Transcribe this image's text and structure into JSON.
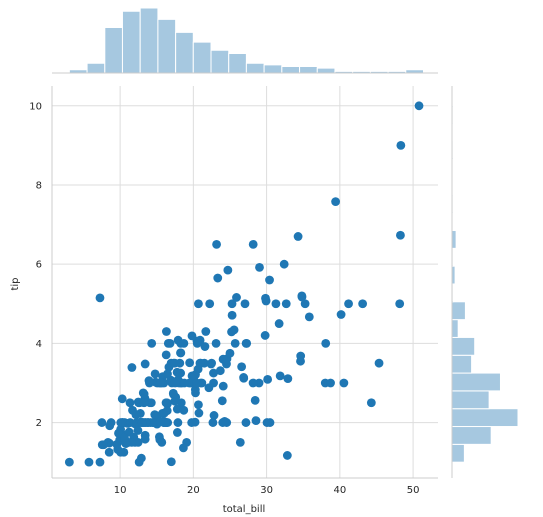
{
  "chart_data": {
    "type": "scatter",
    "xlabel": "total_bill",
    "ylabel": "tip",
    "xlim": [
      0.7,
      53.4
    ],
    "ylim": [
      0.6,
      10.5
    ],
    "xticks": [
      10,
      20,
      30,
      40,
      50
    ],
    "yticks": [
      2,
      4,
      6,
      8,
      10
    ],
    "grid": true,
    "points": [
      [
        16.99,
        1.01
      ],
      [
        10.34,
        1.66
      ],
      [
        21.01,
        3.5
      ],
      [
        23.68,
        3.31
      ],
      [
        24.59,
        3.61
      ],
      [
        25.29,
        4.71
      ],
      [
        8.77,
        2.0
      ],
      [
        26.88,
        3.12
      ],
      [
        15.04,
        1.96
      ],
      [
        14.78,
        3.23
      ],
      [
        10.27,
        1.71
      ],
      [
        35.26,
        5.0
      ],
      [
        15.42,
        1.57
      ],
      [
        18.43,
        3.0
      ],
      [
        14.83,
        3.02
      ],
      [
        21.58,
        3.92
      ],
      [
        10.33,
        1.67
      ],
      [
        16.29,
        3.71
      ],
      [
        16.97,
        3.5
      ],
      [
        20.65,
        3.35
      ],
      [
        17.92,
        4.08
      ],
      [
        20.29,
        2.75
      ],
      [
        15.77,
        2.23
      ],
      [
        39.42,
        7.58
      ],
      [
        19.82,
        3.18
      ],
      [
        17.81,
        2.34
      ],
      [
        13.37,
        2.0
      ],
      [
        12.69,
        2.0
      ],
      [
        21.7,
        4.3
      ],
      [
        19.65,
        3.0
      ],
      [
        9.55,
        1.45
      ],
      [
        18.35,
        2.5
      ],
      [
        15.06,
        3.0
      ],
      [
        20.69,
        2.45
      ],
      [
        17.78,
        3.27
      ],
      [
        24.06,
        3.6
      ],
      [
        16.31,
        2.0
      ],
      [
        16.93,
        3.07
      ],
      [
        18.69,
        2.31
      ],
      [
        31.27,
        5.0
      ],
      [
        16.04,
        2.24
      ],
      [
        17.46,
        2.54
      ],
      [
        13.94,
        3.06
      ],
      [
        9.68,
        1.32
      ],
      [
        30.4,
        5.6
      ],
      [
        18.29,
        3.0
      ],
      [
        22.23,
        5.0
      ],
      [
        32.4,
        6.0
      ],
      [
        28.55,
        2.05
      ],
      [
        18.04,
        3.0
      ],
      [
        12.54,
        2.5
      ],
      [
        10.29,
        2.6
      ],
      [
        34.81,
        5.2
      ],
      [
        9.94,
        1.56
      ],
      [
        25.56,
        4.34
      ],
      [
        19.49,
        3.51
      ],
      [
        38.01,
        3.0
      ],
      [
        26.41,
        1.5
      ],
      [
        11.24,
        1.76
      ],
      [
        48.27,
        6.73
      ],
      [
        20.29,
        3.21
      ],
      [
        13.81,
        2.0
      ],
      [
        11.02,
        1.98
      ],
      [
        18.29,
        3.76
      ],
      [
        17.59,
        2.64
      ],
      [
        20.08,
        3.15
      ],
      [
        16.45,
        2.47
      ],
      [
        3.07,
        1.0
      ],
      [
        20.23,
        2.01
      ],
      [
        15.01,
        2.09
      ],
      [
        12.02,
        1.97
      ],
      [
        17.07,
        3.0
      ],
      [
        26.86,
        3.14
      ],
      [
        25.28,
        5.0
      ],
      [
        14.73,
        2.2
      ],
      [
        10.51,
        1.25
      ],
      [
        17.92,
        3.08
      ],
      [
        27.2,
        4.0
      ],
      [
        22.76,
        3.0
      ],
      [
        17.29,
        2.71
      ],
      [
        19.44,
        3.0
      ],
      [
        16.66,
        3.4
      ],
      [
        10.07,
        1.83
      ],
      [
        32.68,
        5.0
      ],
      [
        15.98,
        2.03
      ],
      [
        34.83,
        5.17
      ],
      [
        13.03,
        2.0
      ],
      [
        18.28,
        4.0
      ],
      [
        24.71,
        5.85
      ],
      [
        21.16,
        3.0
      ],
      [
        28.97,
        3.0
      ],
      [
        22.49,
        3.5
      ],
      [
        5.75,
        1.0
      ],
      [
        16.32,
        4.3
      ],
      [
        22.75,
        3.25
      ],
      [
        40.17,
        4.73
      ],
      [
        27.28,
        4.0
      ],
      [
        12.03,
        1.5
      ],
      [
        21.01,
        3.0
      ],
      [
        12.46,
        1.5
      ],
      [
        11.35,
        2.5
      ],
      [
        15.38,
        3.0
      ],
      [
        44.3,
        2.5
      ],
      [
        22.42,
        3.48
      ],
      [
        20.92,
        4.08
      ],
      [
        15.36,
        1.64
      ],
      [
        20.49,
        4.06
      ],
      [
        25.21,
        4.29
      ],
      [
        18.24,
        3.76
      ],
      [
        14.31,
        4.0
      ],
      [
        14.0,
        3.0
      ],
      [
        7.25,
        1.0
      ],
      [
        38.07,
        4.0
      ],
      [
        23.95,
        2.55
      ],
      [
        25.71,
        4.0
      ],
      [
        17.31,
        3.5
      ],
      [
        29.93,
        5.07
      ],
      [
        10.65,
        1.5
      ],
      [
        12.43,
        1.8
      ],
      [
        24.08,
        2.92
      ],
      [
        11.69,
        2.31
      ],
      [
        13.42,
        1.68
      ],
      [
        14.26,
        2.5
      ],
      [
        15.95,
        2.0
      ],
      [
        12.48,
        2.52
      ],
      [
        29.8,
        4.2
      ],
      [
        8.52,
        1.48
      ],
      [
        14.52,
        2.0
      ],
      [
        11.38,
        2.0
      ],
      [
        22.82,
        2.18
      ],
      [
        19.08,
        1.5
      ],
      [
        20.27,
        2.83
      ],
      [
        11.17,
        1.5
      ],
      [
        12.26,
        2.0
      ],
      [
        18.26,
        3.25
      ],
      [
        8.51,
        1.25
      ],
      [
        10.33,
        2.0
      ],
      [
        14.15,
        2.0
      ],
      [
        16.0,
        2.0
      ],
      [
        13.16,
        2.75
      ],
      [
        17.47,
        3.5
      ],
      [
        34.3,
        6.7
      ],
      [
        41.19,
        5.0
      ],
      [
        27.05,
        5.0
      ],
      [
        16.43,
        2.3
      ],
      [
        8.35,
        1.5
      ],
      [
        18.64,
        1.36
      ],
      [
        11.87,
        1.63
      ],
      [
        9.78,
        1.73
      ],
      [
        7.51,
        2.0
      ],
      [
        14.07,
        2.5
      ],
      [
        13.13,
        2.0
      ],
      [
        17.26,
        2.74
      ],
      [
        24.55,
        2.0
      ],
      [
        19.77,
        2.0
      ],
      [
        29.85,
        5.14
      ],
      [
        48.17,
        5.0
      ],
      [
        25.0,
        3.75
      ],
      [
        13.39,
        2.61
      ],
      [
        16.49,
        2.0
      ],
      [
        21.5,
        3.5
      ],
      [
        12.66,
        2.5
      ],
      [
        16.21,
        2.0
      ],
      [
        13.81,
        2.0
      ],
      [
        17.51,
        3.0
      ],
      [
        24.52,
        3.48
      ],
      [
        20.76,
        2.24
      ],
      [
        31.71,
        4.5
      ],
      [
        10.59,
        1.61
      ],
      [
        10.63,
        2.0
      ],
      [
        50.81,
        10.0
      ],
      [
        15.81,
        3.16
      ],
      [
        7.25,
        5.15
      ],
      [
        31.85,
        3.18
      ],
      [
        16.82,
        4.0
      ],
      [
        32.9,
        3.11
      ],
      [
        17.89,
        2.0
      ],
      [
        14.48,
        2.0
      ],
      [
        34.63,
        3.55
      ],
      [
        34.65,
        3.68
      ],
      [
        23.33,
        5.65
      ],
      [
        45.35,
        3.5
      ],
      [
        23.17,
        6.5
      ],
      [
        40.55,
        3.0
      ],
      [
        20.69,
        5.0
      ],
      [
        20.9,
        3.5
      ],
      [
        30.46,
        2.0
      ],
      [
        18.15,
        3.5
      ],
      [
        23.1,
        4.0
      ],
      [
        15.69,
        1.5
      ],
      [
        19.81,
        4.19
      ],
      [
        28.44,
        2.56
      ],
      [
        15.48,
        2.02
      ],
      [
        16.58,
        4.0
      ],
      [
        7.56,
        1.44
      ],
      [
        10.34,
        2.0
      ],
      [
        43.11,
        5.0
      ],
      [
        13.0,
        2.0
      ],
      [
        13.51,
        2.0
      ],
      [
        18.71,
        4.0
      ],
      [
        12.74,
        2.01
      ],
      [
        13.0,
        2.0
      ],
      [
        16.4,
        2.5
      ],
      [
        20.53,
        4.0
      ],
      [
        16.47,
        3.23
      ],
      [
        26.59,
        3.41
      ],
      [
        38.73,
        3.0
      ],
      [
        24.27,
        2.03
      ],
      [
        12.76,
        2.23
      ],
      [
        30.06,
        2.0
      ],
      [
        25.89,
        5.16
      ],
      [
        48.33,
        9.0
      ],
      [
        13.27,
        2.5
      ],
      [
        28.17,
        6.5
      ],
      [
        12.9,
        1.1
      ],
      [
        28.15,
        3.0
      ],
      [
        11.59,
        1.5
      ],
      [
        7.74,
        1.44
      ],
      [
        30.14,
        3.09
      ],
      [
        12.16,
        2.2
      ],
      [
        13.42,
        3.48
      ],
      [
        8.58,
        1.92
      ],
      [
        15.98,
        3.0
      ],
      [
        13.42,
        1.58
      ],
      [
        16.27,
        2.5
      ],
      [
        10.09,
        2.0
      ],
      [
        20.45,
        3.0
      ],
      [
        13.28,
        2.72
      ],
      [
        22.12,
        2.88
      ],
      [
        24.01,
        2.0
      ],
      [
        15.69,
        3.0
      ],
      [
        11.61,
        3.39
      ],
      [
        10.77,
        1.47
      ],
      [
        15.53,
        3.0
      ],
      [
        10.07,
        1.25
      ],
      [
        12.6,
        1.0
      ],
      [
        32.83,
        1.17
      ],
      [
        35.83,
        4.67
      ],
      [
        29.03,
        5.92
      ],
      [
        27.18,
        2.0
      ],
      [
        22.67,
        2.0
      ],
      [
        17.82,
        1.75
      ],
      [
        18.78,
        3.0
      ]
    ],
    "x_hist": {
      "bins": [
        3.07,
        5.49,
        7.91,
        10.32,
        12.74,
        15.16,
        17.58,
        19.99,
        22.41,
        24.83,
        27.24,
        29.66,
        32.08,
        34.5,
        36.92,
        39.33,
        41.75,
        44.17,
        46.59,
        49.0,
        51.42
      ],
      "counts": [
        2,
        6,
        28,
        38,
        40,
        33,
        25,
        19,
        14,
        12,
        6,
        5,
        4,
        4,
        3,
        1,
        1,
        1,
        1,
        2
      ]
    },
    "y_hist": {
      "bins": [
        1.0,
        1.45,
        1.9,
        2.35,
        2.8,
        3.25,
        3.7,
        4.15,
        4.6,
        5.05,
        5.5,
        5.95,
        6.4,
        6.85,
        7.3,
        7.75,
        8.2,
        8.65,
        9.1,
        9.55,
        10.0
      ],
      "counts": [
        12,
        38,
        64,
        36,
        47,
        19,
        22,
        6,
        13,
        1,
        3,
        1,
        4,
        0,
        1,
        0,
        0,
        1,
        0,
        1
      ]
    },
    "colors": {
      "points": "#1f77b4",
      "hist_fill": "#a6c8e0",
      "hist_edge": "#ffffff",
      "grid": "#dddddd",
      "axis": "#cccccc",
      "text": "#262626"
    }
  }
}
